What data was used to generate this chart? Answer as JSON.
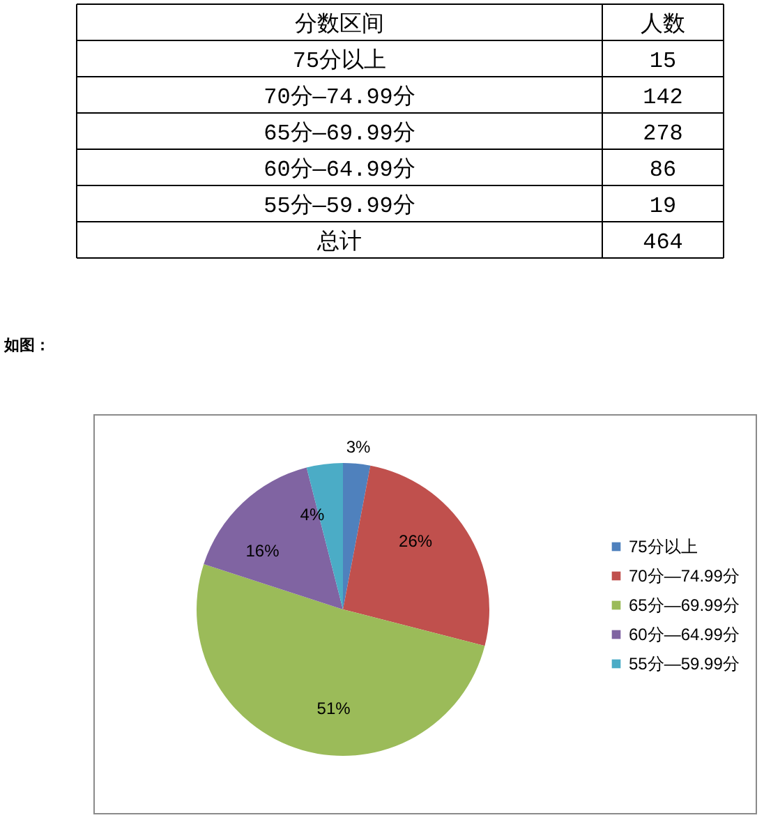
{
  "chart_data": [
    {
      "type": "other",
      "annotations": [
        "分数区间",
        "人数",
        "75分以上",
        "15",
        "70分—74.99分",
        "142",
        "65分—69.99分",
        "278",
        "60分—64.99分",
        "86",
        "55分—59.99分",
        "19",
        "总计",
        "464"
      ]
    },
    {
      "type": "pie",
      "annotations": [
        "如图："
      ],
      "categories": [
        "75分以上",
        "70分—74.99分",
        "65分—69.99分",
        "60分—64.99分",
        "55分—59.99分"
      ],
      "values": [
        3,
        26,
        51,
        16,
        4
      ],
      "colors": [
        "#4f81bd",
        "#c0504d",
        "#9bbb59",
        "#8064a2",
        "#4bacc6"
      ],
      "value_labels": [
        "3%",
        "26%",
        "51%",
        "16%",
        "4%"
      ],
      "legend": "right"
    }
  ]
}
